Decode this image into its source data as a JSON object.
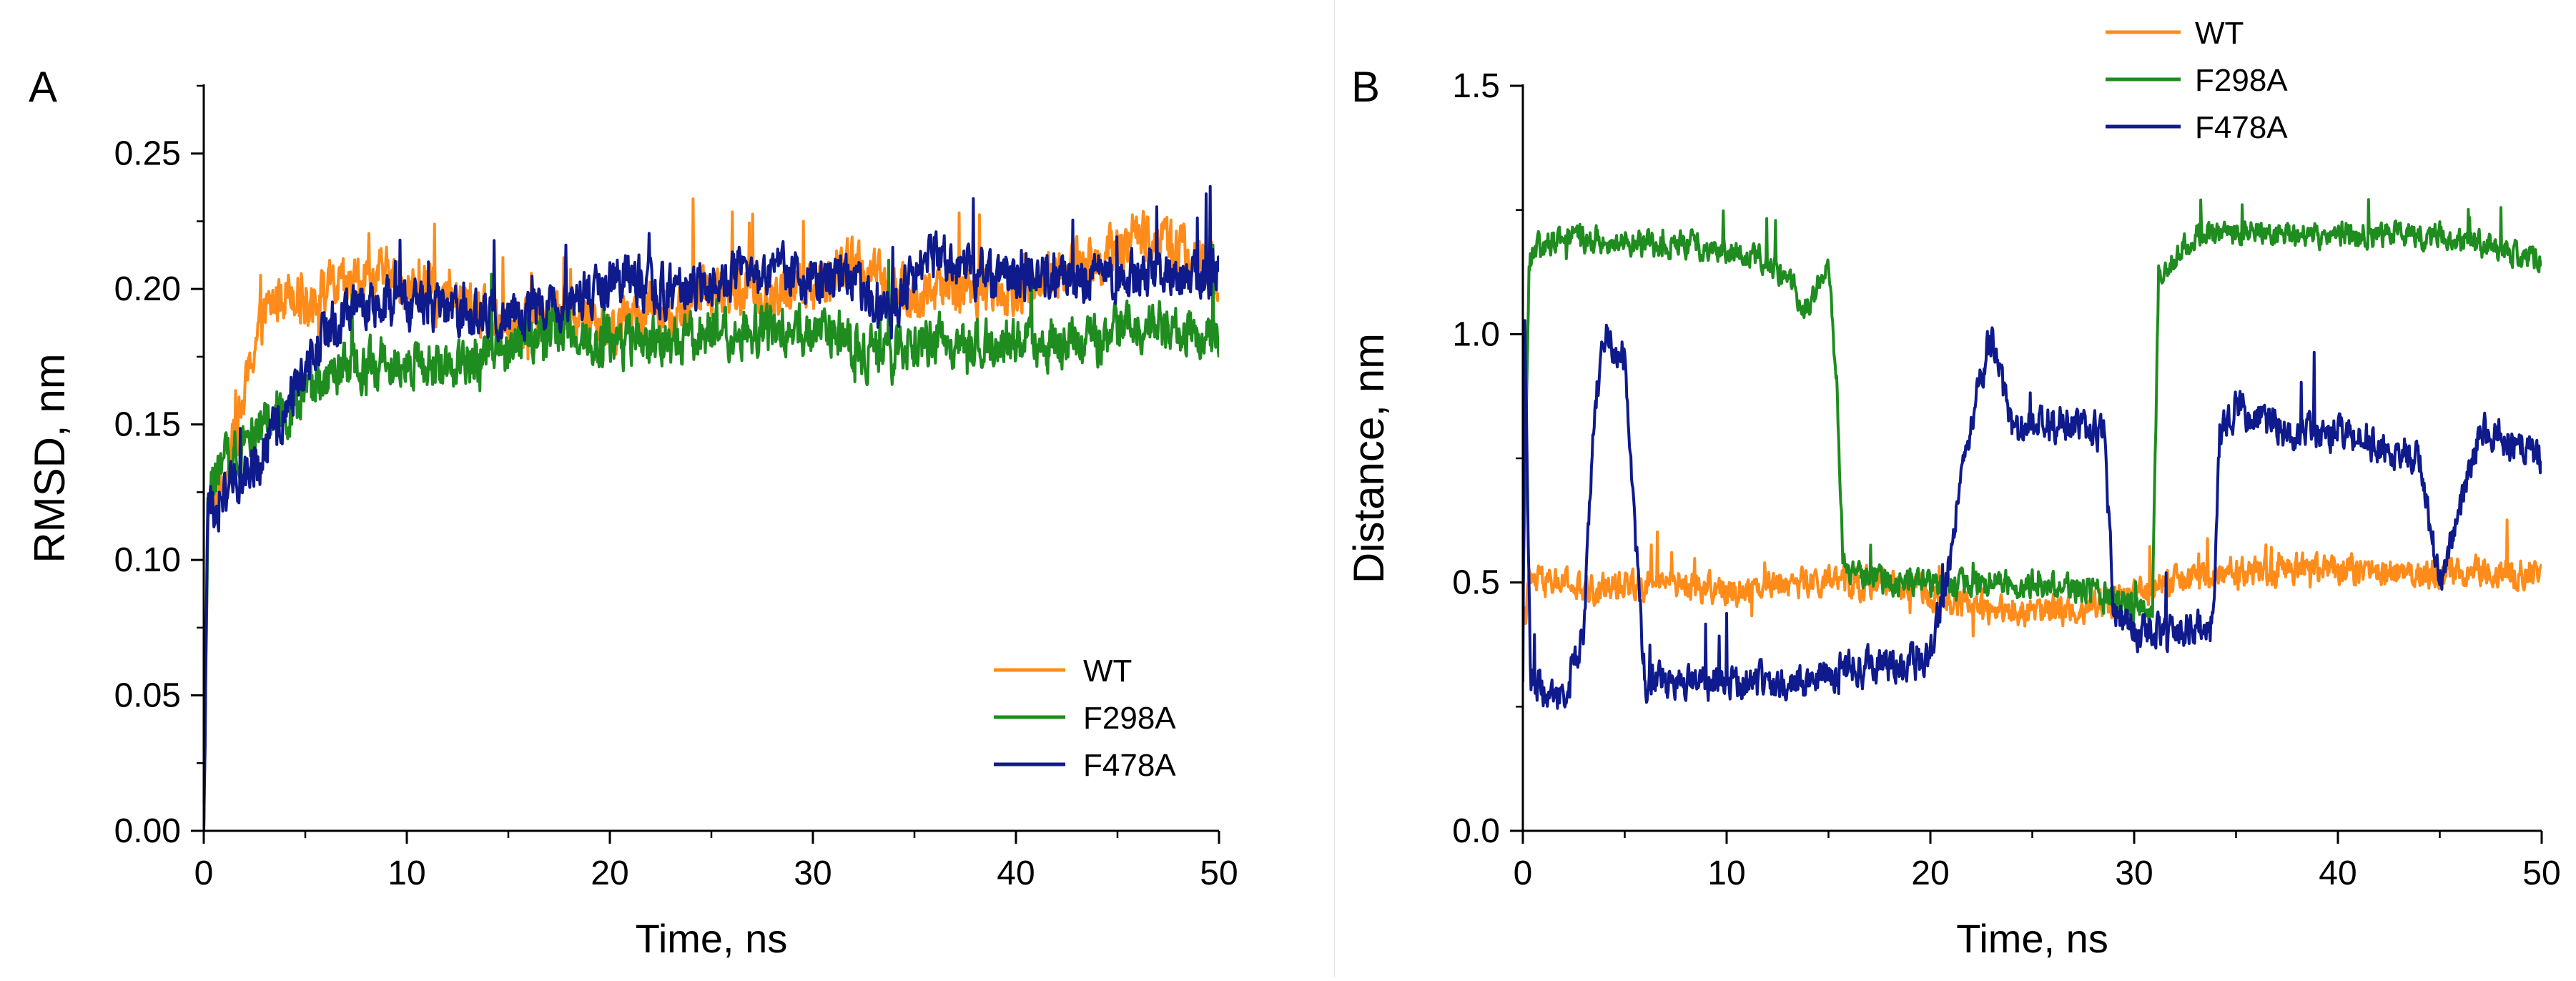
{
  "figure": {
    "panels": [
      "A",
      "B"
    ]
  },
  "chart_data": [
    {
      "panel_label": "A",
      "type": "line",
      "title": "",
      "xlabel": "Time, ns",
      "ylabel": "RMSD, nm",
      "xlim": [
        0,
        50
      ],
      "ylim": [
        0,
        0.275
      ],
      "xticks": [
        0,
        10,
        20,
        30,
        40,
        50
      ],
      "xtick_labels": [
        "0",
        "10",
        "20",
        "30",
        "40",
        "50"
      ],
      "yticks": [
        0,
        0.05,
        0.1,
        0.15,
        0.2,
        0.25
      ],
      "ytick_labels": [
        "0.00",
        "0.05",
        "0.10",
        "0.15",
        "0.20",
        "0.25"
      ],
      "grid": false,
      "legend_position": "bottom-right",
      "legend": [
        "WT",
        "F298A",
        "F478A"
      ],
      "colors": {
        "WT": "#ff8c1a",
        "F298A": "#1f8c1f",
        "F478A": "#0f1a8c"
      },
      "series": [
        {
          "name": "WT",
          "x": [
            0,
            0.2,
            0.5,
            1,
            1.5,
            2,
            2.5,
            3,
            3.5,
            4,
            4.5,
            5,
            6,
            7,
            8,
            9,
            10,
            11,
            12,
            13,
            14,
            15,
            16,
            17,
            18,
            19,
            20,
            21,
            22,
            23,
            24,
            25,
            26,
            27,
            28,
            29,
            30,
            31,
            32,
            33,
            34,
            35,
            36,
            37,
            38,
            39,
            40,
            41,
            42,
            43,
            44,
            45,
            46,
            47,
            48,
            49,
            50
          ],
          "values": [
            0.0,
            0.115,
            0.12,
            0.13,
            0.145,
            0.16,
            0.18,
            0.19,
            0.195,
            0.2,
            0.2,
            0.195,
            0.2,
            0.2,
            0.205,
            0.205,
            0.2,
            0.2,
            0.195,
            0.195,
            0.19,
            0.19,
            0.19,
            0.19,
            0.19,
            0.19,
            0.185,
            0.19,
            0.195,
            0.19,
            0.195,
            0.2,
            0.2,
            0.2,
            0.195,
            0.2,
            0.2,
            0.205,
            0.21,
            0.205,
            0.2,
            0.195,
            0.2,
            0.2,
            0.2,
            0.2,
            0.2,
            0.205,
            0.205,
            0.21,
            0.21,
            0.215,
            0.22,
            0.22,
            0.215,
            0.21,
            0.205
          ],
          "noise": 0.014
        },
        {
          "name": "F298A",
          "x": [
            0,
            0.2,
            0.5,
            1,
            2,
            3,
            4,
            5,
            6,
            7,
            8,
            9,
            10,
            11,
            12,
            13,
            14,
            15,
            16,
            17,
            18,
            19,
            20,
            21,
            22,
            23,
            24,
            25,
            26,
            27,
            28,
            29,
            30,
            31,
            32,
            33,
            34,
            35,
            36,
            37,
            38,
            39,
            40,
            41,
            42,
            43,
            44,
            45,
            46,
            47,
            48,
            49,
            50
          ],
          "values": [
            0.0,
            0.12,
            0.13,
            0.135,
            0.145,
            0.15,
            0.155,
            0.16,
            0.165,
            0.17,
            0.17,
            0.175,
            0.175,
            0.17,
            0.17,
            0.175,
            0.175,
            0.18,
            0.18,
            0.185,
            0.185,
            0.18,
            0.18,
            0.18,
            0.18,
            0.18,
            0.18,
            0.185,
            0.185,
            0.185,
            0.185,
            0.185,
            0.185,
            0.185,
            0.18,
            0.175,
            0.175,
            0.18,
            0.18,
            0.18,
            0.18,
            0.18,
            0.18,
            0.18,
            0.18,
            0.18,
            0.18,
            0.185,
            0.185,
            0.185,
            0.185,
            0.185,
            0.185
          ],
          "noise": 0.014
        },
        {
          "name": "F478A",
          "x": [
            0,
            0.2,
            0.5,
            1,
            2,
            3,
            4,
            5,
            6,
            7,
            8,
            9,
            10,
            11,
            12,
            13,
            14,
            15,
            16,
            17,
            18,
            19,
            20,
            21,
            22,
            23,
            24,
            25,
            26,
            27,
            28,
            29,
            30,
            31,
            32,
            33,
            34,
            35,
            36,
            37,
            38,
            39,
            40,
            41,
            42,
            43,
            44,
            45,
            46,
            47,
            48,
            49,
            50
          ],
          "values": [
            0.0,
            0.115,
            0.12,
            0.125,
            0.13,
            0.14,
            0.155,
            0.17,
            0.185,
            0.19,
            0.195,
            0.195,
            0.195,
            0.195,
            0.19,
            0.19,
            0.19,
            0.19,
            0.19,
            0.195,
            0.195,
            0.2,
            0.2,
            0.205,
            0.2,
            0.2,
            0.2,
            0.2,
            0.205,
            0.205,
            0.205,
            0.205,
            0.205,
            0.205,
            0.205,
            0.19,
            0.195,
            0.205,
            0.215,
            0.21,
            0.205,
            0.205,
            0.205,
            0.205,
            0.205,
            0.205,
            0.205,
            0.205,
            0.205,
            0.205,
            0.205,
            0.205,
            0.205
          ],
          "noise": 0.014
        }
      ]
    },
    {
      "panel_label": "B",
      "type": "line",
      "title": "",
      "xlabel": "Time, ns",
      "ylabel": "Distance, nm",
      "xlim": [
        0,
        50
      ],
      "ylim": [
        0,
        1.5
      ],
      "xticks": [
        0,
        10,
        20,
        30,
        40,
        50
      ],
      "xtick_labels": [
        "0",
        "10",
        "20",
        "30",
        "40",
        "50"
      ],
      "yticks": [
        0.0,
        0.5,
        1.0,
        1.5
      ],
      "ytick_labels": [
        "0.0",
        "0.5",
        "1.0",
        "1.5"
      ],
      "grid": false,
      "legend_position": "top-right",
      "legend": [
        "WT",
        "F298A",
        "F478A"
      ],
      "colors": {
        "WT": "#ff8c1a",
        "F298A": "#1f8c1f",
        "F478A": "#0f1a8c"
      },
      "series": [
        {
          "name": "WT",
          "x": [
            0,
            0.3,
            1,
            2,
            3,
            5,
            8,
            10,
            12,
            15,
            18,
            20,
            21,
            22,
            25,
            28,
            30,
            32,
            35,
            38,
            40,
            42,
            45,
            48,
            50
          ],
          "values": [
            0.4,
            0.5,
            0.5,
            0.5,
            0.48,
            0.5,
            0.5,
            0.48,
            0.5,
            0.5,
            0.5,
            0.48,
            0.46,
            0.45,
            0.44,
            0.45,
            0.48,
            0.5,
            0.52,
            0.53,
            0.53,
            0.52,
            0.52,
            0.52,
            0.52
          ],
          "noise": 0.045
        },
        {
          "name": "F298A",
          "x": [
            0,
            0.3,
            0.6,
            2,
            5,
            8,
            10,
            12,
            13.5,
            14,
            15,
            15.4,
            15.7,
            16,
            18,
            20,
            22,
            25,
            28,
            30,
            30.9,
            31.2,
            33,
            35,
            40,
            45,
            50
          ],
          "values": [
            0.45,
            1.15,
            1.17,
            1.2,
            1.18,
            1.18,
            1.17,
            1.15,
            1.08,
            1.05,
            1.15,
            0.9,
            0.55,
            0.52,
            0.5,
            0.5,
            0.5,
            0.5,
            0.48,
            0.45,
            0.45,
            1.12,
            1.2,
            1.2,
            1.2,
            1.2,
            1.15
          ],
          "noise": 0.04
        },
        {
          "name": "F478A",
          "x": [
            0,
            0.1,
            0.4,
            1,
            2,
            3,
            3.5,
            4,
            5,
            5.5,
            6,
            7,
            8,
            10,
            12,
            14,
            16,
            18,
            20,
            21,
            21.5,
            22,
            23,
            24,
            25,
            27,
            28.5,
            29,
            30,
            32,
            33.9,
            34.2,
            35,
            38,
            40,
            42,
            44,
            45,
            46,
            47,
            48,
            49,
            50
          ],
          "values": [
            0.3,
            1.0,
            0.3,
            0.28,
            0.28,
            0.4,
            0.85,
            1.0,
            0.95,
            0.6,
            0.3,
            0.3,
            0.3,
            0.3,
            0.3,
            0.3,
            0.33,
            0.33,
            0.35,
            0.55,
            0.75,
            0.82,
            1.0,
            0.8,
            0.82,
            0.82,
            0.8,
            0.45,
            0.4,
            0.4,
            0.42,
            0.8,
            0.85,
            0.8,
            0.8,
            0.78,
            0.75,
            0.5,
            0.65,
            0.8,
            0.8,
            0.78,
            0.75
          ],
          "noise": 0.055
        }
      ]
    }
  ]
}
